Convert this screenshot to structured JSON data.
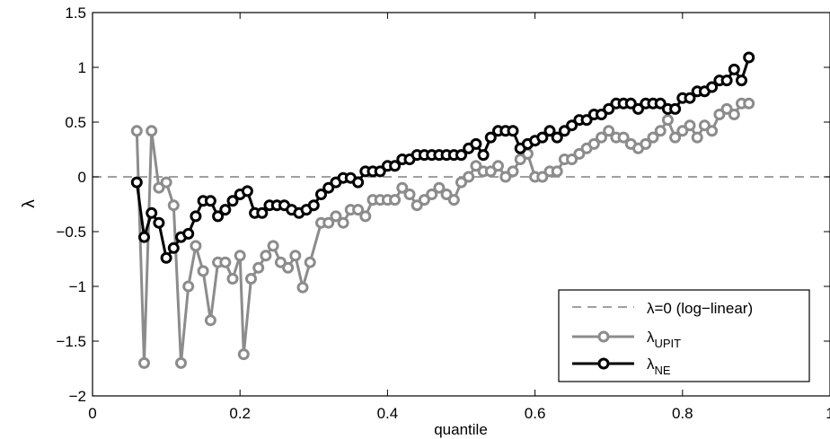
{
  "chart_data": {
    "type": "line",
    "title": "",
    "xlabel": "quantile",
    "ylabel": "λ",
    "xlim": [
      0,
      1
    ],
    "ylim": [
      -2,
      1.5
    ],
    "xticks": [
      {
        "v": 0,
        "label": "0"
      },
      {
        "v": 0.2,
        "label": "0.2"
      },
      {
        "v": 0.4,
        "label": "0.4"
      },
      {
        "v": 0.6,
        "label": "0.6"
      },
      {
        "v": 0.8,
        "label": "0.8"
      },
      {
        "v": 1,
        "label": "1"
      }
    ],
    "yticks": [
      {
        "v": 1.5,
        "label": "1.5"
      },
      {
        "v": 1,
        "label": "1"
      },
      {
        "v": 0.5,
        "label": "0.5"
      },
      {
        "v": 0,
        "label": "0"
      },
      {
        "v": -0.5,
        "label": "−0.5"
      },
      {
        "v": -1,
        "label": "−1"
      },
      {
        "v": -1.5,
        "label": "−1.5"
      },
      {
        "v": -2,
        "label": "−2"
      }
    ],
    "grid": false,
    "legend_position": "bottom-right",
    "reference_line": {
      "y": 0,
      "style": "dashed",
      "color": "#808080"
    },
    "legend": [
      {
        "key": "ref",
        "main": "λ=0 (log−linear)",
        "sub": ""
      },
      {
        "key": "upit",
        "main": "λ",
        "sub": "UPIT"
      },
      {
        "key": "ne",
        "main": "λ",
        "sub": "NE"
      }
    ],
    "series": [
      {
        "key": "upit",
        "color": "#8c8c8c",
        "x": [
          0.06,
          0.07,
          0.08,
          0.09,
          0.1,
          0.11,
          0.12,
          0.13,
          0.14,
          0.15,
          0.16,
          0.17,
          0.18,
          0.19,
          0.2,
          0.205,
          0.215,
          0.225,
          0.235,
          0.245,
          0.255,
          0.265,
          0.275,
          0.285,
          0.295,
          0.31,
          0.32,
          0.33,
          0.34,
          0.35,
          0.36,
          0.37,
          0.38,
          0.39,
          0.4,
          0.41,
          0.42,
          0.43,
          0.44,
          0.45,
          0.46,
          0.47,
          0.48,
          0.49,
          0.5,
          0.51,
          0.52,
          0.53,
          0.54,
          0.55,
          0.56,
          0.57,
          0.58,
          0.59,
          0.6,
          0.61,
          0.62,
          0.63,
          0.64,
          0.65,
          0.66,
          0.67,
          0.68,
          0.69,
          0.7,
          0.71,
          0.72,
          0.73,
          0.74,
          0.75,
          0.76,
          0.77,
          0.78,
          0.79,
          0.8,
          0.81,
          0.82,
          0.83,
          0.84,
          0.85,
          0.86,
          0.87,
          0.88,
          0.89
        ],
        "y": [
          0.42,
          -1.7,
          0.42,
          -0.1,
          -0.05,
          -0.26,
          -1.7,
          -1.0,
          -0.63,
          -0.86,
          -1.31,
          -0.78,
          -0.78,
          -0.93,
          -0.72,
          -1.62,
          -0.93,
          -0.83,
          -0.72,
          -0.63,
          -0.78,
          -0.83,
          -0.72,
          -1.01,
          -0.78,
          -0.42,
          -0.42,
          -0.36,
          -0.42,
          -0.3,
          -0.3,
          -0.36,
          -0.21,
          -0.21,
          -0.21,
          -0.21,
          -0.1,
          -0.16,
          -0.26,
          -0.21,
          -0.16,
          -0.1,
          -0.16,
          -0.21,
          -0.05,
          0.0,
          0.1,
          0.05,
          0.05,
          0.1,
          0.0,
          0.05,
          0.16,
          0.21,
          0.0,
          0.0,
          0.05,
          0.05,
          0.16,
          0.16,
          0.21,
          0.26,
          0.3,
          0.36,
          0.42,
          0.36,
          0.36,
          0.3,
          0.26,
          0.3,
          0.36,
          0.42,
          0.52,
          0.36,
          0.42,
          0.47,
          0.36,
          0.47,
          0.42,
          0.57,
          0.62,
          0.57,
          0.67,
          0.67
        ]
      },
      {
        "key": "ne",
        "color": "#000000",
        "x": [
          0.06,
          0.07,
          0.08,
          0.09,
          0.1,
          0.11,
          0.12,
          0.13,
          0.14,
          0.15,
          0.16,
          0.17,
          0.18,
          0.19,
          0.2,
          0.21,
          0.22,
          0.23,
          0.24,
          0.25,
          0.26,
          0.27,
          0.28,
          0.29,
          0.3,
          0.31,
          0.32,
          0.33,
          0.34,
          0.35,
          0.36,
          0.37,
          0.38,
          0.39,
          0.4,
          0.41,
          0.42,
          0.43,
          0.44,
          0.45,
          0.46,
          0.47,
          0.48,
          0.49,
          0.5,
          0.51,
          0.52,
          0.53,
          0.54,
          0.55,
          0.56,
          0.57,
          0.58,
          0.59,
          0.6,
          0.61,
          0.62,
          0.63,
          0.64,
          0.65,
          0.66,
          0.67,
          0.68,
          0.69,
          0.7,
          0.71,
          0.72,
          0.73,
          0.74,
          0.75,
          0.76,
          0.77,
          0.78,
          0.79,
          0.8,
          0.81,
          0.82,
          0.83,
          0.84,
          0.85,
          0.86,
          0.87,
          0.88,
          0.89
        ],
        "y": [
          -0.05,
          -0.55,
          -0.33,
          -0.42,
          -0.74,
          -0.65,
          -0.55,
          -0.52,
          -0.36,
          -0.22,
          -0.22,
          -0.36,
          -0.3,
          -0.22,
          -0.16,
          -0.13,
          -0.33,
          -0.33,
          -0.26,
          -0.26,
          -0.26,
          -0.3,
          -0.33,
          -0.3,
          -0.26,
          -0.16,
          -0.1,
          -0.05,
          -0.01,
          -0.01,
          -0.05,
          0.05,
          0.05,
          0.05,
          0.1,
          0.1,
          0.16,
          0.16,
          0.2,
          0.2,
          0.2,
          0.2,
          0.2,
          0.2,
          0.2,
          0.26,
          0.3,
          0.2,
          0.36,
          0.42,
          0.42,
          0.42,
          0.26,
          0.3,
          0.33,
          0.36,
          0.42,
          0.36,
          0.42,
          0.47,
          0.52,
          0.52,
          0.57,
          0.57,
          0.62,
          0.67,
          0.67,
          0.67,
          0.62,
          0.67,
          0.67,
          0.67,
          0.62,
          0.62,
          0.72,
          0.72,
          0.78,
          0.78,
          0.82,
          0.88,
          0.88,
          0.98,
          0.88,
          1.09
        ]
      }
    ]
  }
}
